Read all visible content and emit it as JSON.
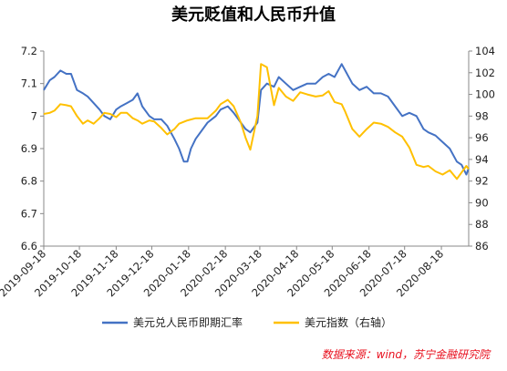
{
  "chart_data": {
    "type": "line",
    "title": "美元贬值和人民币升值",
    "x_ticks": [
      "2019-09-18",
      "2019-10-18",
      "2019-11-18",
      "2019-12-18",
      "2020-01-18",
      "2020-02-18",
      "2020-03-18",
      "2020-04-18",
      "2020-05-18",
      "2020-06-18",
      "2020-07-18",
      "2020-08-18"
    ],
    "x_range": [
      "2019-09-18",
      "2020-09-10"
    ],
    "ylim_left": [
      6.6,
      7.2
    ],
    "y_ticks_left": [
      "6.6",
      "6.7",
      "6.8",
      "6.9",
      "7",
      "7.1",
      "7.2"
    ],
    "ylim_right": [
      86,
      104
    ],
    "y_ticks_right": [
      "86",
      "88",
      "90",
      "92",
      "94",
      "96",
      "98",
      "100",
      "102",
      "104"
    ],
    "grid": false,
    "legend_position": "bottom",
    "series": [
      {
        "name": "美元兑人民币即期汇率",
        "axis": "left",
        "color": "#4472c4",
        "points": [
          [
            "2019-09-18",
            7.08
          ],
          [
            "2019-09-23",
            7.11
          ],
          [
            "2019-09-27",
            7.12
          ],
          [
            "2019-10-02",
            7.14
          ],
          [
            "2019-10-07",
            7.13
          ],
          [
            "2019-10-11",
            7.13
          ],
          [
            "2019-10-16",
            7.08
          ],
          [
            "2019-10-21",
            7.07
          ],
          [
            "2019-10-25",
            7.06
          ],
          [
            "2019-10-30",
            7.04
          ],
          [
            "2019-11-04",
            7.02
          ],
          [
            "2019-11-08",
            7.0
          ],
          [
            "2019-11-13",
            6.99
          ],
          [
            "2019-11-18",
            7.02
          ],
          [
            "2019-11-22",
            7.03
          ],
          [
            "2019-11-27",
            7.04
          ],
          [
            "2019-12-02",
            7.05
          ],
          [
            "2019-12-06",
            7.07
          ],
          [
            "2019-12-10",
            7.03
          ],
          [
            "2019-12-16",
            7.0
          ],
          [
            "2019-12-20",
            6.99
          ],
          [
            "2019-12-26",
            6.99
          ],
          [
            "2019-12-31",
            6.97
          ],
          [
            "2020-01-06",
            6.93
          ],
          [
            "2020-01-10",
            6.9
          ],
          [
            "2020-01-14",
            6.86
          ],
          [
            "2020-01-17",
            6.86
          ],
          [
            "2020-01-20",
            6.9
          ],
          [
            "2020-01-24",
            6.93
          ],
          [
            "2020-02-03",
            6.98
          ],
          [
            "2020-02-10",
            7.0
          ],
          [
            "2020-02-14",
            7.02
          ],
          [
            "2020-02-20",
            7.03
          ],
          [
            "2020-02-25",
            7.01
          ],
          [
            "2020-03-02",
            6.98
          ],
          [
            "2020-03-06",
            6.96
          ],
          [
            "2020-03-10",
            6.95
          ],
          [
            "2020-03-16",
            6.98
          ],
          [
            "2020-03-19",
            7.08
          ],
          [
            "2020-03-24",
            7.1
          ],
          [
            "2020-03-30",
            7.09
          ],
          [
            "2020-04-03",
            7.12
          ],
          [
            "2020-04-09",
            7.1
          ],
          [
            "2020-04-15",
            7.08
          ],
          [
            "2020-04-21",
            7.09
          ],
          [
            "2020-04-27",
            7.1
          ],
          [
            "2020-05-04",
            7.1
          ],
          [
            "2020-05-10",
            7.12
          ],
          [
            "2020-05-15",
            7.13
          ],
          [
            "2020-05-20",
            7.12
          ],
          [
            "2020-05-26",
            7.16
          ],
          [
            "2020-05-29",
            7.14
          ],
          [
            "2020-06-04",
            7.1
          ],
          [
            "2020-06-10",
            7.08
          ],
          [
            "2020-06-16",
            7.09
          ],
          [
            "2020-06-22",
            7.07
          ],
          [
            "2020-06-28",
            7.07
          ],
          [
            "2020-07-04",
            7.06
          ],
          [
            "2020-07-10",
            7.03
          ],
          [
            "2020-07-16",
            7.0
          ],
          [
            "2020-07-22",
            7.01
          ],
          [
            "2020-07-28",
            7.0
          ],
          [
            "2020-08-03",
            6.96
          ],
          [
            "2020-08-07",
            6.95
          ],
          [
            "2020-08-13",
            6.94
          ],
          [
            "2020-08-19",
            6.92
          ],
          [
            "2020-08-25",
            6.9
          ],
          [
            "2020-08-31",
            6.86
          ],
          [
            "2020-09-04",
            6.85
          ],
          [
            "2020-09-08",
            6.82
          ],
          [
            "2020-09-10",
            6.84
          ]
        ]
      },
      {
        "name": "美元指数（右轴）",
        "axis": "right",
        "color": "#ffc000",
        "points": [
          [
            "2019-09-18",
            98.2
          ],
          [
            "2019-09-23",
            98.3
          ],
          [
            "2019-09-27",
            98.5
          ],
          [
            "2019-10-02",
            99.1
          ],
          [
            "2019-10-07",
            99.0
          ],
          [
            "2019-10-11",
            98.9
          ],
          [
            "2019-10-16",
            98.0
          ],
          [
            "2019-10-21",
            97.3
          ],
          [
            "2019-10-25",
            97.6
          ],
          [
            "2019-10-30",
            97.3
          ],
          [
            "2019-11-04",
            97.8
          ],
          [
            "2019-11-08",
            98.3
          ],
          [
            "2019-11-13",
            98.2
          ],
          [
            "2019-11-18",
            97.9
          ],
          [
            "2019-11-22",
            98.3
          ],
          [
            "2019-11-27",
            98.3
          ],
          [
            "2019-12-02",
            97.8
          ],
          [
            "2019-12-06",
            97.6
          ],
          [
            "2019-12-10",
            97.3
          ],
          [
            "2019-12-16",
            97.6
          ],
          [
            "2019-12-20",
            97.5
          ],
          [
            "2019-12-26",
            96.9
          ],
          [
            "2019-12-31",
            96.3
          ],
          [
            "2020-01-06",
            96.8
          ],
          [
            "2020-01-10",
            97.3
          ],
          [
            "2020-01-17",
            97.6
          ],
          [
            "2020-01-24",
            97.8
          ],
          [
            "2020-02-03",
            97.8
          ],
          [
            "2020-02-10",
            98.5
          ],
          [
            "2020-02-14",
            99.1
          ],
          [
            "2020-02-20",
            99.5
          ],
          [
            "2020-02-25",
            98.9
          ],
          [
            "2020-03-02",
            97.4
          ],
          [
            "2020-03-06",
            96.0
          ],
          [
            "2020-03-10",
            94.9
          ],
          [
            "2020-03-16",
            98.0
          ],
          [
            "2020-03-19",
            102.8
          ],
          [
            "2020-03-24",
            102.5
          ],
          [
            "2020-03-30",
            99.0
          ],
          [
            "2020-04-03",
            100.6
          ],
          [
            "2020-04-09",
            99.8
          ],
          [
            "2020-04-15",
            99.4
          ],
          [
            "2020-04-21",
            100.2
          ],
          [
            "2020-04-27",
            100.0
          ],
          [
            "2020-05-04",
            99.8
          ],
          [
            "2020-05-10",
            99.9
          ],
          [
            "2020-05-15",
            100.3
          ],
          [
            "2020-05-20",
            99.3
          ],
          [
            "2020-05-26",
            99.1
          ],
          [
            "2020-05-29",
            98.4
          ],
          [
            "2020-06-04",
            96.8
          ],
          [
            "2020-06-10",
            96.1
          ],
          [
            "2020-06-16",
            96.8
          ],
          [
            "2020-06-22",
            97.4
          ],
          [
            "2020-06-28",
            97.3
          ],
          [
            "2020-07-04",
            97.0
          ],
          [
            "2020-07-10",
            96.5
          ],
          [
            "2020-07-16",
            96.1
          ],
          [
            "2020-07-22",
            95.1
          ],
          [
            "2020-07-28",
            93.5
          ],
          [
            "2020-08-03",
            93.3
          ],
          [
            "2020-08-07",
            93.4
          ],
          [
            "2020-08-13",
            92.9
          ],
          [
            "2020-08-19",
            92.6
          ],
          [
            "2020-08-25",
            93.0
          ],
          [
            "2020-08-31",
            92.2
          ],
          [
            "2020-09-04",
            92.8
          ],
          [
            "2020-09-08",
            93.4
          ],
          [
            "2020-09-10",
            93.1
          ]
        ]
      }
    ]
  },
  "source_text": "数据来源：wind，苏宁金融研究院"
}
